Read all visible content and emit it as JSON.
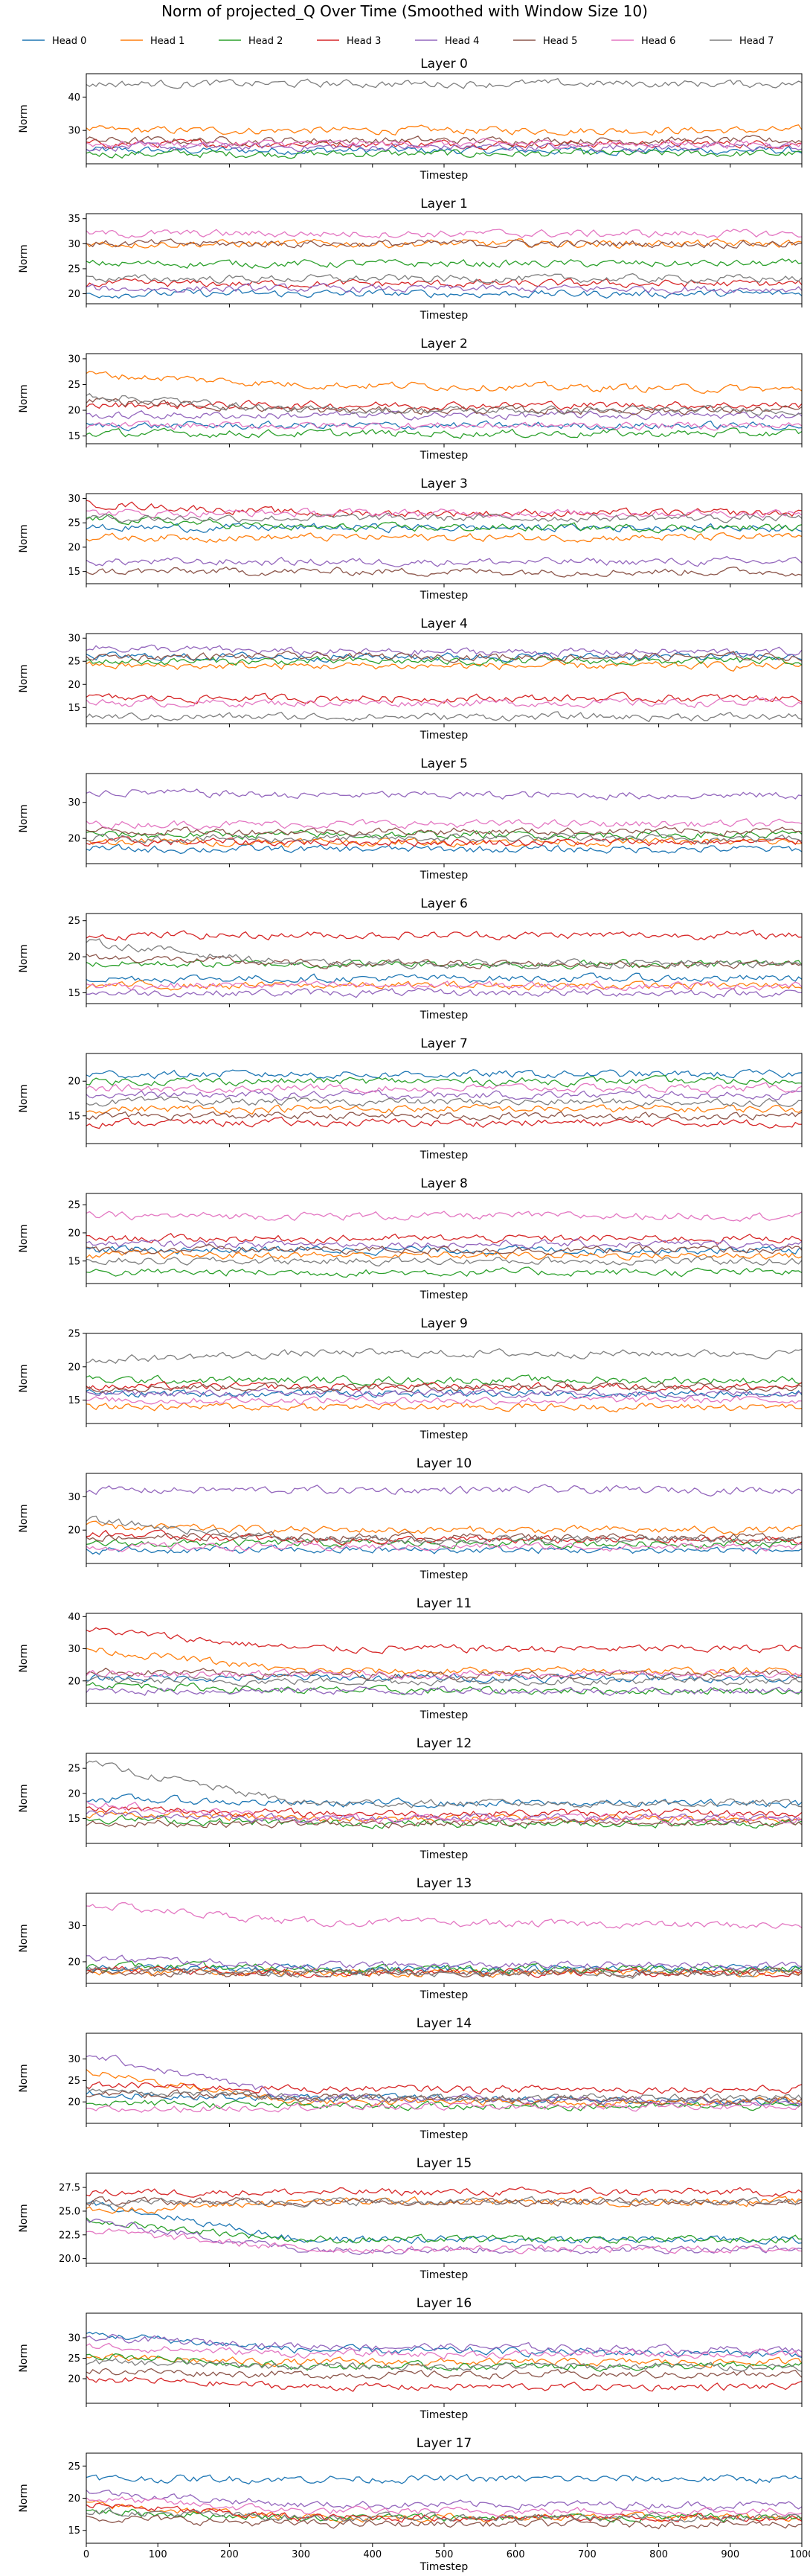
{
  "title": "Norm of projected_Q Over Time (Smoothed with Window Size 10)",
  "chart_data": {
    "type": "line",
    "x_range": [
      0,
      1000
    ],
    "x_ticks": [
      0,
      100,
      200,
      300,
      400,
      500,
      600,
      700,
      800,
      900,
      1000
    ],
    "xlabel": "Timestep",
    "ylabel": "Norm",
    "legend_position": "top",
    "series_names": [
      "Head 0",
      "Head 1",
      "Head 2",
      "Head 3",
      "Head 4",
      "Head 5",
      "Head 6",
      "Head 7"
    ],
    "colors": [
      "#1f77b4",
      "#ff7f0e",
      "#2ca02c",
      "#d62728",
      "#9467bd",
      "#8c564b",
      "#e377c2",
      "#7f7f7f"
    ],
    "panels": [
      {
        "title": "Layer 0",
        "ylim": [
          20,
          47
        ],
        "yticks": [
          30,
          40
        ],
        "levels": [
          [
            24,
            24,
            24
          ],
          [
            30,
            30,
            30
          ],
          [
            23,
            23,
            23
          ],
          [
            26,
            26,
            26
          ],
          [
            25,
            25,
            25
          ],
          [
            27,
            27,
            27
          ],
          [
            26,
            26,
            26
          ],
          [
            44,
            44,
            44
          ]
        ]
      },
      {
        "title": "Layer 1",
        "ylim": [
          18,
          36
        ],
        "yticks": [
          20,
          25,
          30,
          35
        ],
        "levels": [
          [
            20,
            20,
            20
          ],
          [
            30,
            30,
            30
          ],
          [
            26,
            26,
            26
          ],
          [
            22,
            22,
            22
          ],
          [
            21,
            21,
            21
          ],
          [
            30,
            30,
            30
          ],
          [
            32,
            32,
            32
          ],
          [
            23,
            23,
            23
          ]
        ]
      },
      {
        "title": "Layer 2",
        "ylim": [
          13.5,
          31
        ],
        "yticks": [
          15,
          20,
          25,
          30
        ],
        "levels": [
          [
            17,
            17,
            17
          ],
          [
            27,
            25,
            24
          ],
          [
            15.5,
            15.5,
            15.5
          ],
          [
            21,
            21,
            21
          ],
          [
            19,
            19,
            19
          ],
          [
            22,
            20,
            20
          ],
          [
            17,
            17,
            17
          ],
          [
            23,
            20,
            20
          ]
        ]
      },
      {
        "title": "Layer 3",
        "ylim": [
          12.5,
          31
        ],
        "yticks": [
          15,
          20,
          25,
          30
        ],
        "levels": [
          [
            24,
            24,
            24
          ],
          [
            22,
            22,
            22
          ],
          [
            26,
            24,
            24
          ],
          [
            29,
            27,
            27
          ],
          [
            17,
            17,
            17
          ],
          [
            15,
            15,
            15
          ],
          [
            27,
            27,
            27
          ],
          [
            26,
            26,
            26
          ]
        ]
      },
      {
        "title": "Layer 4",
        "ylim": [
          11.5,
          31
        ],
        "yticks": [
          15,
          20,
          25,
          30
        ],
        "levels": [
          [
            26,
            26,
            26
          ],
          [
            24,
            24,
            24
          ],
          [
            25,
            25,
            25
          ],
          [
            17,
            17,
            17
          ],
          [
            28,
            27,
            27
          ],
          [
            26,
            26,
            26
          ],
          [
            16,
            16,
            16
          ],
          [
            13,
            13,
            13
          ]
        ]
      },
      {
        "title": "Layer 5",
        "ylim": [
          13,
          38
        ],
        "yticks": [
          20,
          30
        ],
        "levels": [
          [
            17,
            17,
            17
          ],
          [
            19,
            19,
            19
          ],
          [
            21,
            21,
            21
          ],
          [
            19,
            19,
            19
          ],
          [
            33,
            32,
            32
          ],
          [
            22,
            22,
            22
          ],
          [
            24,
            24,
            24
          ],
          [
            20,
            20,
            20
          ]
        ]
      },
      {
        "title": "Layer 6",
        "ylim": [
          13.5,
          26
        ],
        "yticks": [
          15,
          20,
          25
        ],
        "levels": [
          [
            17,
            17,
            17
          ],
          [
            16,
            16,
            16
          ],
          [
            19,
            19,
            19
          ],
          [
            23,
            23,
            23
          ],
          [
            15,
            15,
            15
          ],
          [
            20,
            19,
            19
          ],
          [
            16,
            16,
            16
          ],
          [
            22,
            19,
            19
          ]
        ]
      },
      {
        "title": "Layer 7",
        "ylim": [
          11,
          24
        ],
        "yticks": [
          15,
          20
        ],
        "levels": [
          [
            21,
            21,
            21
          ],
          [
            16,
            16,
            16
          ],
          [
            20,
            20,
            20
          ],
          [
            14,
            14,
            14
          ],
          [
            18,
            18,
            18
          ],
          [
            15,
            15,
            15
          ],
          [
            19,
            19,
            19
          ],
          [
            17,
            17,
            17
          ]
        ]
      },
      {
        "title": "Layer 8",
        "ylim": [
          11,
          27
        ],
        "yticks": [
          15,
          20,
          25
        ],
        "levels": [
          [
            17,
            17,
            17
          ],
          [
            16,
            16,
            16
          ],
          [
            13,
            13,
            13
          ],
          [
            19,
            19,
            19
          ],
          [
            18,
            18,
            18
          ],
          [
            17,
            17,
            17
          ],
          [
            23,
            23,
            23
          ],
          [
            15,
            15,
            15
          ]
        ]
      },
      {
        "title": "Layer 9",
        "ylim": [
          11.5,
          25
        ],
        "yticks": [
          15,
          20,
          25
        ],
        "levels": [
          [
            16,
            16,
            16
          ],
          [
            14,
            14,
            14
          ],
          [
            18,
            18,
            18
          ],
          [
            17,
            17,
            17
          ],
          [
            16,
            16,
            16
          ],
          [
            17,
            17,
            17
          ],
          [
            15,
            15,
            15
          ],
          [
            21,
            22,
            22
          ]
        ]
      },
      {
        "title": "Layer 10",
        "ylim": [
          10,
          37
        ],
        "yticks": [
          20,
          30
        ],
        "levels": [
          [
            14,
            14,
            14
          ],
          [
            21,
            20,
            20
          ],
          [
            16,
            16,
            16
          ],
          [
            19,
            17,
            17
          ],
          [
            32,
            32,
            32
          ],
          [
            18,
            18,
            18
          ],
          [
            15,
            15,
            15
          ],
          [
            23,
            17,
            17
          ]
        ]
      },
      {
        "title": "Layer 11",
        "ylim": [
          13,
          41
        ],
        "yticks": [
          20,
          30,
          40
        ],
        "levels": [
          [
            21,
            21,
            21
          ],
          [
            30,
            23,
            23
          ],
          [
            19,
            17,
            17
          ],
          [
            36,
            30,
            30
          ],
          [
            17,
            17,
            17
          ],
          [
            23,
            22,
            22
          ],
          [
            22,
            22,
            22
          ],
          [
            20,
            20,
            20
          ]
        ]
      },
      {
        "title": "Layer 12",
        "ylim": [
          10,
          28
        ],
        "yticks": [
          15,
          20,
          25
        ],
        "levels": [
          [
            19,
            18,
            18
          ],
          [
            16,
            15,
            15
          ],
          [
            15,
            14,
            14
          ],
          [
            17,
            16,
            16
          ],
          [
            16,
            15,
            15
          ],
          [
            14,
            14,
            14
          ],
          [
            18,
            15,
            15
          ],
          [
            26,
            18,
            18
          ]
        ]
      },
      {
        "title": "Layer 13",
        "ylim": [
          14,
          39
        ],
        "yticks": [
          20,
          30
        ],
        "levels": [
          [
            18,
            18,
            18
          ],
          [
            17,
            17,
            17
          ],
          [
            19,
            18,
            18
          ],
          [
            18,
            17,
            17
          ],
          [
            21,
            19,
            19
          ],
          [
            17,
            17,
            17
          ],
          [
            36,
            31,
            30
          ],
          [
            18,
            17,
            17
          ]
        ]
      },
      {
        "title": "Layer 14",
        "ylim": [
          15,
          36
        ],
        "yticks": [
          20,
          25,
          30
        ],
        "levels": [
          [
            22,
            21,
            20
          ],
          [
            27,
            20,
            20
          ],
          [
            20,
            19,
            19
          ],
          [
            24,
            23,
            23
          ],
          [
            31,
            21,
            20
          ],
          [
            22,
            21,
            20
          ],
          [
            18,
            19,
            19
          ],
          [
            23,
            21,
            21
          ]
        ]
      },
      {
        "title": "Layer 15",
        "ylim": [
          19.5,
          29
        ],
        "yticks": [
          20.0,
          22.5,
          25.0,
          27.5
        ],
        "levels": [
          [
            26,
            22,
            22
          ],
          [
            25,
            26,
            26
          ],
          [
            24,
            22,
            22
          ],
          [
            27,
            27,
            27
          ],
          [
            24,
            21,
            21
          ],
          [
            26,
            26,
            26
          ],
          [
            23,
            21,
            21
          ],
          [
            26,
            26,
            26
          ]
        ]
      },
      {
        "title": "Layer 16",
        "ylim": [
          14,
          36
        ],
        "yticks": [
          20,
          25,
          30
        ],
        "levels": [
          [
            31,
            27,
            26
          ],
          [
            25,
            24,
            24
          ],
          [
            26,
            23,
            23
          ],
          [
            20,
            18,
            18
          ],
          [
            30,
            28,
            27
          ],
          [
            22,
            21,
            21
          ],
          [
            28,
            26,
            26
          ],
          [
            24,
            23,
            23
          ]
        ]
      },
      {
        "title": "Layer 17",
        "ylim": [
          13,
          27
        ],
        "yticks": [
          15,
          20,
          25
        ],
        "levels": [
          [
            23,
            23,
            23
          ],
          [
            19,
            17,
            17
          ],
          [
            18,
            17,
            17
          ],
          [
            19,
            17,
            17
          ],
          [
            21,
            19,
            19
          ],
          [
            17,
            16,
            16
          ],
          [
            20,
            18,
            18
          ],
          [
            18,
            17,
            17
          ]
        ]
      }
    ]
  }
}
